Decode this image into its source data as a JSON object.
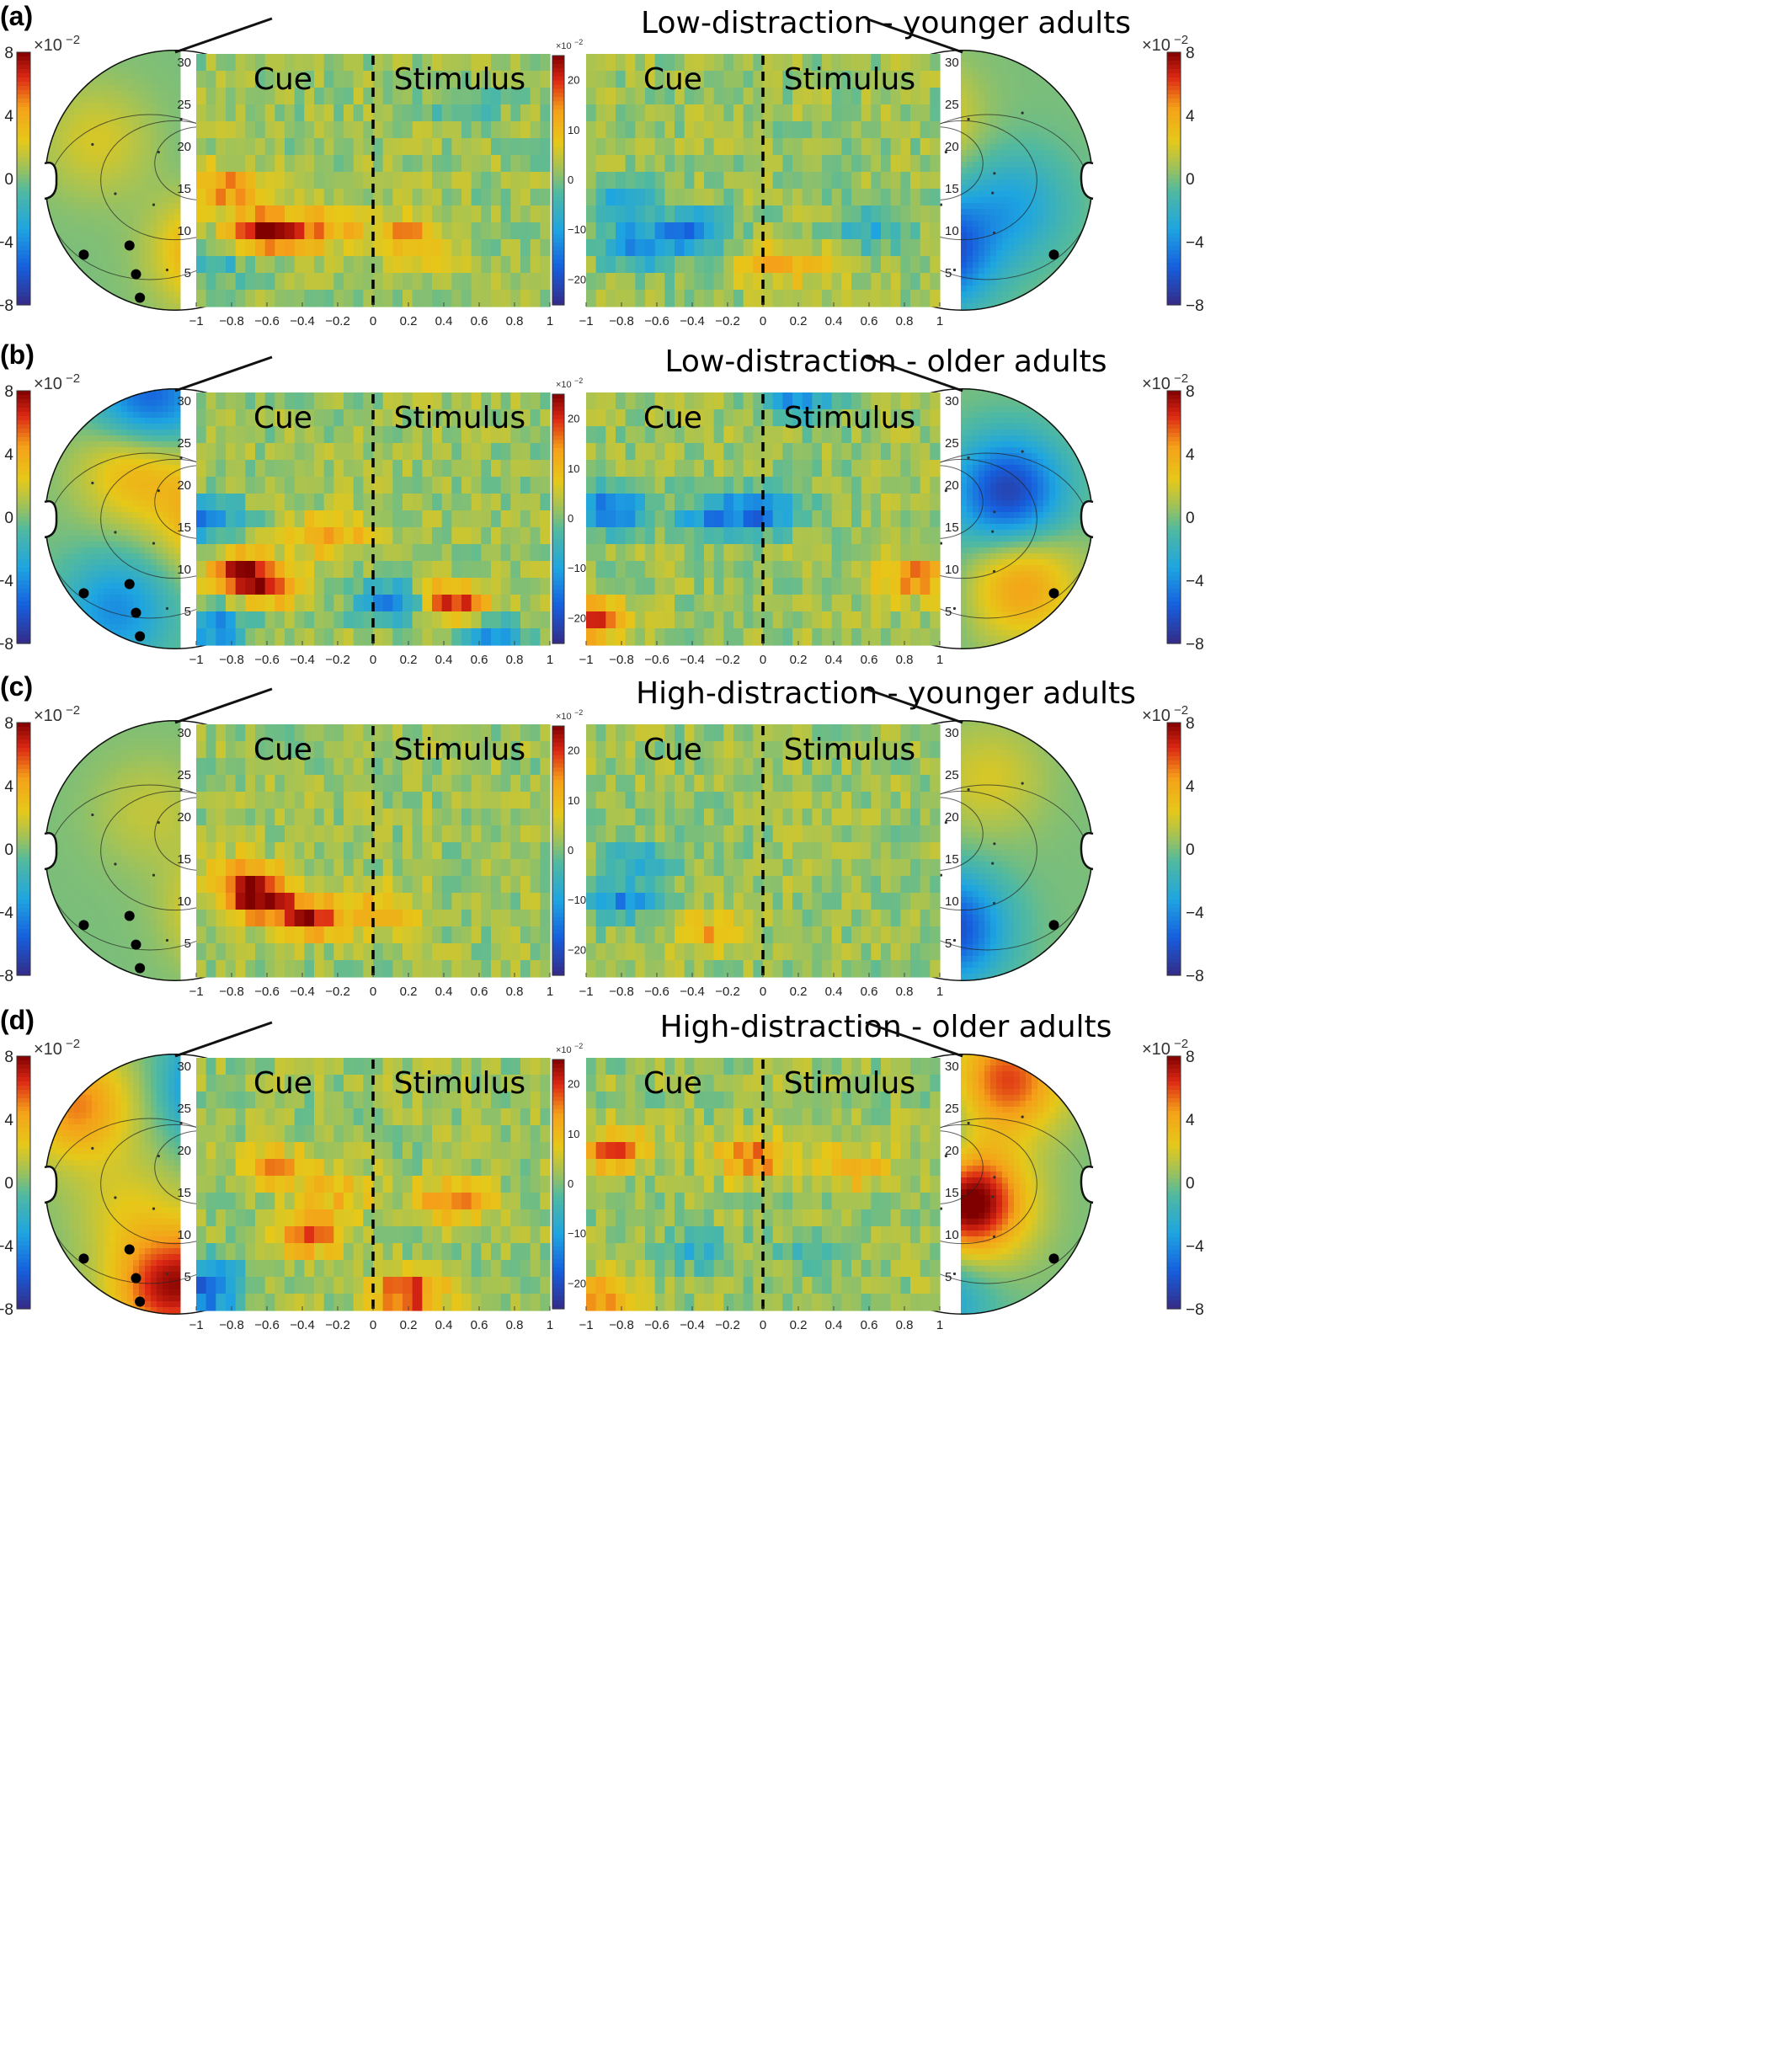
{
  "figure": {
    "panels": [
      {
        "label": "(a)",
        "title": "Low-distraction - younger adults"
      },
      {
        "label": "(b)",
        "title": "Low-distraction - older adults"
      },
      {
        "label": "(c)",
        "title": "High-distraction - younger adults"
      },
      {
        "label": "(d)",
        "title": "High-distraction - older adults"
      }
    ],
    "phase_labels": {
      "cue": "Cue",
      "stimulus": "Stimulus"
    },
    "topo_colorbar": {
      "exponent": "×10",
      "power": "−2",
      "ticks": [
        "8",
        "4",
        "0",
        "−4",
        "−8"
      ]
    },
    "tf_colorbar": {
      "exponent": "×10",
      "power": "−2",
      "ticks": [
        "20",
        "10",
        "0",
        "−10",
        "−20"
      ]
    },
    "freq_ticks": [
      "30",
      "25",
      "20",
      "15",
      "10",
      "5"
    ],
    "time_ticks": [
      "−1",
      "−0.8",
      "−0.6",
      "−0.4",
      "−0.2",
      "0",
      "0.2",
      "0.4",
      "0.6",
      "0.8",
      "1"
    ]
  },
  "chart_data": {
    "type": "heatmap",
    "colormap": "parula-like (blue → green → yellow → red)",
    "x_axis": {
      "range": [
        -1,
        1
      ],
      "marker_at": 0
    },
    "y_axis": {
      "range": [
        1,
        31
      ],
      "unit": "frequency"
    },
    "tf_color_range": [
      -25,
      25
    ],
    "topo_color_range": [
      -8,
      8
    ],
    "panels": [
      {
        "title": "Low-distraction - younger adults",
        "left_tf_blobs": [
          {
            "t": -0.62,
            "f": 10,
            "amp": 21
          },
          {
            "t": -0.85,
            "f": 15,
            "amp": 14
          },
          {
            "t": -0.3,
            "f": 10,
            "amp": 12
          },
          {
            "t": 0.15,
            "f": 10,
            "amp": 9
          },
          {
            "t": 0.3,
            "f": 8,
            "amp": 7
          },
          {
            "t": -0.9,
            "f": 6,
            "amp": -8
          },
          {
            "t": 0.5,
            "f": 25,
            "amp": -6
          }
        ],
        "right_tf_blobs": [
          {
            "t": -0.7,
            "f": 8,
            "amp": -16
          },
          {
            "t": -0.4,
            "f": 10,
            "amp": -15
          },
          {
            "t": -0.8,
            "f": 13,
            "amp": -12
          },
          {
            "t": 0.6,
            "f": 10,
            "amp": -9
          },
          {
            "t": 0.05,
            "f": 6,
            "amp": 8
          },
          {
            "t": 0.3,
            "f": 6,
            "amp": 5
          }
        ],
        "left_topo_blobs": [
          {
            "x": -0.3,
            "y": 0.55,
            "amp": 5
          },
          {
            "x": 0.6,
            "y": -0.3,
            "amp": 2
          },
          {
            "x": -0.6,
            "y": -0.1,
            "amp": -1.5
          }
        ],
        "right_topo_blobs": [
          {
            "x": -0.2,
            "y": 0.55,
            "amp": -7
          },
          {
            "x": -0.35,
            "y": -0.45,
            "amp": 3.5
          },
          {
            "x": 0.4,
            "y": 0.2,
            "amp": -3
          }
        ]
      },
      {
        "title": "Low-distraction - older adults",
        "left_tf_blobs": [
          {
            "t": -0.75,
            "f": 10,
            "amp": 16
          },
          {
            "t": -0.6,
            "f": 8,
            "amp": 17
          },
          {
            "t": -0.25,
            "f": 14,
            "amp": 13
          },
          {
            "t": 0.45,
            "f": 6,
            "amp": 19
          },
          {
            "t": 0.1,
            "f": 6,
            "amp": -18
          },
          {
            "t": -0.95,
            "f": 16,
            "amp": -17
          },
          {
            "t": -0.9,
            "f": 3,
            "amp": -16
          },
          {
            "t": 0.65,
            "f": 2,
            "amp": -14
          }
        ],
        "right_tf_blobs": [
          {
            "t": -0.85,
            "f": 17,
            "amp": -20
          },
          {
            "t": 0.0,
            "f": 17,
            "amp": -18
          },
          {
            "t": -0.3,
            "f": 16,
            "amp": -14
          },
          {
            "t": -0.95,
            "f": 4,
            "amp": 18
          },
          {
            "t": 0.85,
            "f": 9,
            "amp": 14
          },
          {
            "t": 0.2,
            "f": 30,
            "amp": -14
          }
        ],
        "left_topo_blobs": [
          {
            "x": -0.35,
            "y": 0.0,
            "amp": 5
          },
          {
            "x": 0.3,
            "y": -0.4,
            "amp": 4
          },
          {
            "x": 0.2,
            "y": -0.9,
            "amp": -6
          },
          {
            "x": 0.45,
            "y": 0.7,
            "amp": -4
          }
        ],
        "right_topo_blobs": [
          {
            "x": 0.35,
            "y": -0.2,
            "amp": -7
          },
          {
            "x": 0.45,
            "y": 0.5,
            "amp": 4.5
          },
          {
            "x": -0.55,
            "y": 0.55,
            "amp": -4
          }
        ]
      },
      {
        "title": "High-distraction - younger adults",
        "left_tf_blobs": [
          {
            "t": -0.65,
            "f": 10,
            "amp": 21
          },
          {
            "t": -0.35,
            "f": 8,
            "amp": 20
          },
          {
            "t": -0.75,
            "f": 13,
            "amp": 14
          },
          {
            "t": 0.05,
            "f": 9,
            "amp": 10
          }
        ],
        "right_tf_blobs": [
          {
            "t": -0.8,
            "f": 10,
            "amp": -14
          },
          {
            "t": -0.7,
            "f": 15,
            "amp": -9
          },
          {
            "t": -0.3,
            "f": 6,
            "amp": 10
          }
        ],
        "left_topo_blobs": [
          {
            "x": -0.45,
            "y": 0.45,
            "amp": 4.5
          },
          {
            "x": 0.2,
            "y": -0.3,
            "amp": 1.5
          }
        ],
        "right_topo_blobs": [
          {
            "x": -0.1,
            "y": 0.6,
            "amp": -6.5
          },
          {
            "x": 0.2,
            "y": -0.55,
            "amp": 2
          }
        ]
      },
      {
        "title": "High-distraction - older adults",
        "left_tf_blobs": [
          {
            "t": -0.95,
            "f": 3,
            "amp": -18
          },
          {
            "t": 0.2,
            "f": 3,
            "amp": 20
          },
          {
            "t": -0.35,
            "f": 10,
            "amp": 15
          },
          {
            "t": 0.45,
            "f": 14,
            "amp": 15
          },
          {
            "t": -0.55,
            "f": 18,
            "amp": 11
          },
          {
            "t": -0.2,
            "f": 15,
            "amp": 9
          },
          {
            "t": -0.9,
            "f": 6,
            "amp": -8
          }
        ],
        "right_tf_blobs": [
          {
            "t": -0.85,
            "f": 20,
            "amp": 15
          },
          {
            "t": -0.05,
            "f": 19,
            "amp": 16
          },
          {
            "t": 0.5,
            "f": 18,
            "amp": 11
          },
          {
            "t": -0.9,
            "f": 3,
            "amp": 13
          },
          {
            "t": -0.4,
            "f": 8,
            "amp": -8
          },
          {
            "t": 0.3,
            "f": 8,
            "amp": -7
          }
        ],
        "left_topo_blobs": [
          {
            "x": -0.4,
            "y": -0.75,
            "amp": -7
          },
          {
            "x": -0.65,
            "y": 0.55,
            "amp": 9
          },
          {
            "x": 0.05,
            "y": 0.8,
            "amp": 7
          },
          {
            "x": 0.75,
            "y": -0.6,
            "amp": 5
          },
          {
            "x": 0.35,
            "y": 0.2,
            "amp": 2
          }
        ],
        "right_topo_blobs": [
          {
            "x": 0.05,
            "y": 0.15,
            "amp": 9
          },
          {
            "x": -0.5,
            "y": -0.3,
            "amp": -7
          },
          {
            "x": 0.35,
            "y": -0.8,
            "amp": 6
          },
          {
            "x": -0.2,
            "y": 0.85,
            "amp": -3.5
          }
        ]
      }
    ],
    "electrode_markers": "highlighted electrodes over right posterior (left head) and left posterior (right head) regions"
  }
}
